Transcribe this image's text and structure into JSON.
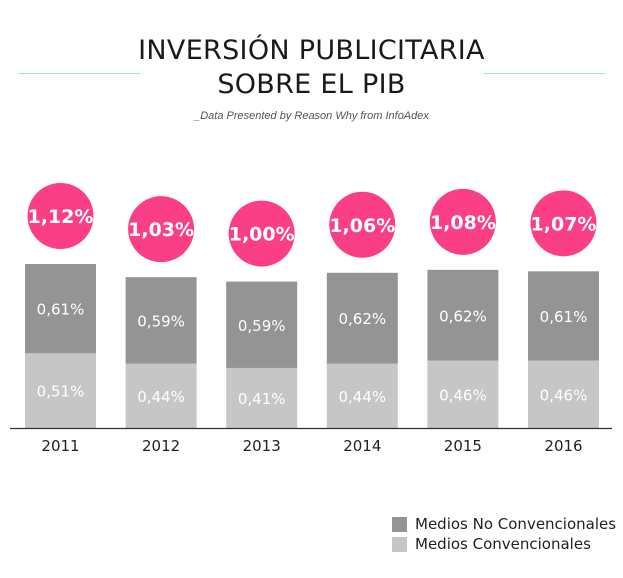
{
  "page": {
    "title_line1": "INVERSIÓN PUBLICITARIA",
    "title_line2": "SOBRE EL PIB",
    "subtitle": "_Data Presented by Reason Why from InfoAdex"
  },
  "colors": {
    "no_convencionales": "#949494",
    "convencionales": "#c6c6c6",
    "total_circle": "#fb3f86",
    "accent_rule": "#a9dde3"
  },
  "chart_data": {
    "type": "bar",
    "stacked": true,
    "categories": [
      "2011",
      "2012",
      "2013",
      "2014",
      "2015",
      "2016"
    ],
    "series": [
      {
        "name": "Medios Convencionales",
        "values": [
          0.51,
          0.44,
          0.41,
          0.44,
          0.46,
          0.46
        ],
        "labels": [
          "0,51%",
          "0,44%",
          "0,41%",
          "0,44%",
          "0,46%",
          "0,46%"
        ]
      },
      {
        "name": "Medios No Convencionales",
        "values": [
          0.61,
          0.59,
          0.59,
          0.62,
          0.62,
          0.61
        ],
        "labels": [
          "0,61%",
          "0,59%",
          "0,59%",
          "0,62%",
          "0,62%",
          "0,61%"
        ]
      }
    ],
    "totals": [
      1.12,
      1.03,
      1.0,
      1.06,
      1.08,
      1.07
    ],
    "total_labels": [
      "1,12%",
      "1,03%",
      "1,00%",
      "1,06%",
      "1,08%",
      "1,07%"
    ],
    "ylim": [
      0,
      1.12
    ],
    "legend_position": "bottom-right",
    "grid": false
  }
}
